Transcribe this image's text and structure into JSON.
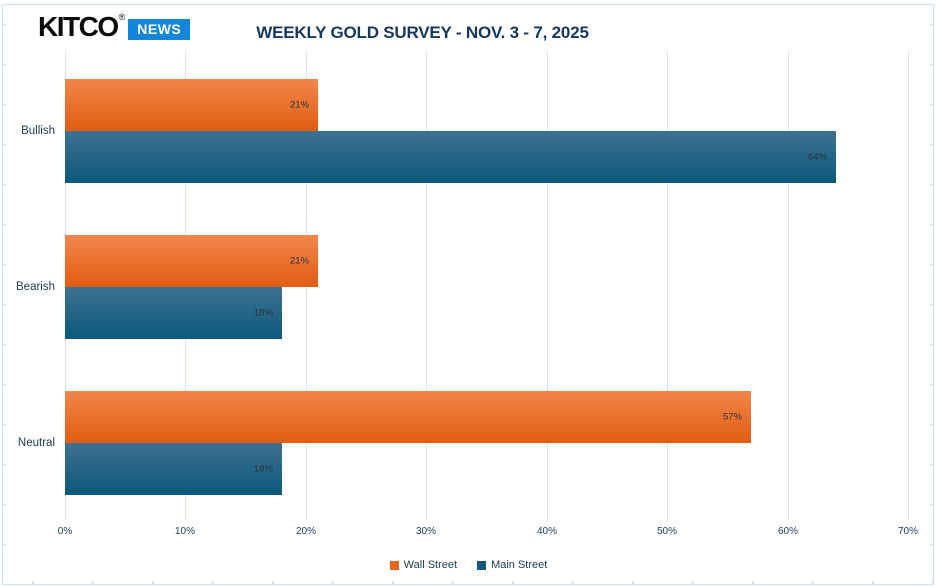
{
  "logo": {
    "brand": "KITCO",
    "registered_mark": "®",
    "badge": "NEWS"
  },
  "header": {
    "title": "WEEKLY GOLD SURVEY - NOV. 3 - 7, 2025"
  },
  "colors": {
    "wall_street_gradient_top": "#f1874d",
    "wall_street_gradient_bottom": "#e25c10",
    "main_street_gradient_top": "#3e7191",
    "main_street_gradient_bottom": "#0b597c",
    "wall_street_legend": "#e8681f",
    "main_street_legend": "#14597c",
    "title_text": "#17375e",
    "axis_text": "#1f3a54",
    "bar_label_text": "#2a333c",
    "gridline": "#d9e6f2",
    "frame": "#cfe0ee",
    "badge_background": "#1287d9",
    "badge_text": "#ffffff",
    "logo_text": "#0c0c0c"
  },
  "chart_data": {
    "type": "bar",
    "orientation": "horizontal",
    "title": "WEEKLY GOLD SURVEY - NOV. 3 - 7, 2025",
    "categories": [
      "Bullish",
      "Bearish",
      "Neutral"
    ],
    "series": [
      {
        "name": "Wall Street",
        "values": [
          21,
          21,
          57
        ],
        "data_labels": [
          "21%",
          "21%",
          "57%"
        ]
      },
      {
        "name": "Main Street",
        "values": [
          64,
          18,
          18
        ],
        "data_labels": [
          "64%",
          "18%",
          "18%"
        ]
      }
    ],
    "value_axis": {
      "min": 0,
      "max": 70,
      "tick_step": 10,
      "tick_labels": [
        "0%",
        "10%",
        "20%",
        "30%",
        "40%",
        "50%",
        "60%",
        "70%"
      ]
    },
    "grid": true,
    "legend_position": "bottom"
  },
  "legend": {
    "items": [
      {
        "label": "Wall Street"
      },
      {
        "label": "Main Street"
      }
    ]
  }
}
